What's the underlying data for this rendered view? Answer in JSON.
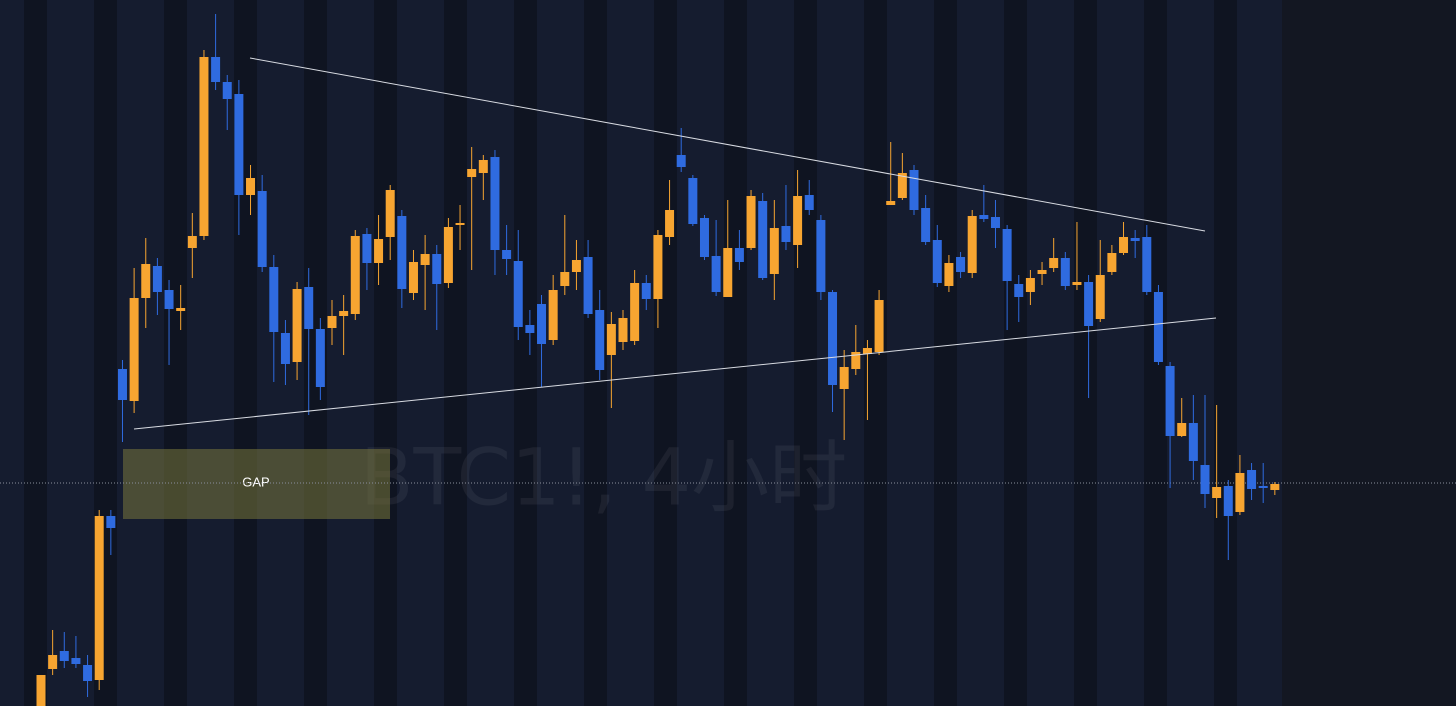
{
  "chart_data": {
    "type": "candlestick",
    "watermark": "BTC1!, 4小时",
    "annotation": "GAP",
    "up_color": "#f7a531",
    "down_color": "#2f6be0",
    "ylim": [
      0,
      706
    ],
    "open": [
      0,
      37,
      55,
      48,
      41,
      26,
      190,
      337,
      305,
      408,
      440,
      416,
      395,
      458,
      470,
      649,
      624,
      612,
      511,
      515,
      439,
      373,
      344,
      419,
      377,
      378,
      390,
      392,
      472,
      443,
      469,
      490,
      413,
      441,
      452,
      423,
      481,
      529,
      533,
      549,
      456,
      445,
      381,
      402,
      366,
      420,
      434,
      449,
      396,
      351,
      364,
      365,
      423,
      407,
      469,
      551,
      528,
      488,
      450,
      409,
      458,
      458,
      505,
      432,
      480,
      461,
      511,
      486,
      414,
      317,
      337,
      352,
      354,
      501,
      508,
      536,
      498,
      466,
      420,
      449,
      433,
      491,
      489,
      477,
      422,
      414,
      432,
      438,
      448,
      421,
      424,
      387,
      434,
      453,
      468,
      469,
      414,
      340,
      270,
      283,
      241,
      208,
      220,
      194,
      236,
      220,
      216
    ],
    "high": [
      31,
      76,
      74,
      70,
      51,
      196,
      196,
      346,
      438,
      468,
      448,
      426,
      421,
      493,
      656,
      692,
      631,
      626,
      541,
      531,
      451,
      386,
      424,
      438,
      388,
      406,
      411,
      476,
      478,
      491,
      521,
      496,
      456,
      471,
      461,
      488,
      501,
      559,
      551,
      556,
      481,
      476,
      396,
      411,
      431,
      491,
      466,
      466,
      416,
      394,
      396,
      436,
      431,
      476,
      526,
      578,
      531,
      491,
      486,
      506,
      476,
      516,
      513,
      506,
      521,
      536,
      526,
      491,
      416,
      356,
      381,
      366,
      416,
      564,
      553,
      541,
      511,
      481,
      451,
      454,
      496,
      521,
      506,
      481,
      431,
      436,
      444,
      468,
      454,
      484,
      431,
      466,
      461,
      484,
      476,
      481,
      421,
      344,
      308,
      311,
      311,
      301,
      226,
      251,
      243,
      243,
      224
    ],
    "low": [
      0,
      31,
      38,
      38,
      9,
      16,
      151,
      264,
      293,
      378,
      391,
      341,
      376,
      428,
      466,
      616,
      576,
      471,
      491,
      434,
      324,
      321,
      326,
      291,
      306,
      361,
      351,
      386,
      416,
      421,
      446,
      398,
      406,
      396,
      376,
      418,
      456,
      436,
      506,
      431,
      431,
      366,
      351,
      319,
      361,
      411,
      416,
      388,
      326,
      298,
      356,
      361,
      396,
      378,
      461,
      534,
      480,
      446,
      410,
      409,
      436,
      456,
      426,
      406,
      456,
      438,
      491,
      406,
      294,
      266,
      331,
      286,
      351,
      501,
      506,
      491,
      461,
      419,
      414,
      428,
      428,
      484,
      458,
      376,
      384,
      401,
      421,
      434,
      416,
      416,
      308,
      384,
      431,
      451,
      448,
      411,
      341,
      218,
      269,
      226,
      198,
      188,
      146,
      191,
      206,
      203,
      211
    ],
    "close": [
      31,
      51,
      45,
      42,
      25,
      190,
      178,
      306,
      408,
      442,
      414,
      397,
      398,
      470,
      649,
      624,
      607,
      511,
      528,
      439,
      374,
      342,
      417,
      377,
      319,
      390,
      395,
      470,
      443,
      467,
      516,
      417,
      444,
      452,
      422,
      479,
      483,
      537,
      546,
      456,
      447,
      379,
      373,
      362,
      416,
      434,
      446,
      392,
      336,
      382,
      388,
      423,
      407,
      471,
      496,
      539,
      482,
      449,
      414,
      458,
      444,
      510,
      428,
      478,
      464,
      510,
      496,
      414,
      321,
      339,
      354,
      358,
      406,
      505,
      533,
      496,
      464,
      423,
      443,
      434,
      490,
      487,
      478,
      425,
      409,
      428,
      436,
      448,
      420,
      424,
      380,
      431,
      453,
      469,
      465,
      414,
      344,
      270,
      283,
      245,
      212,
      219,
      190,
      233,
      217,
      218,
      222
    ]
  }
}
